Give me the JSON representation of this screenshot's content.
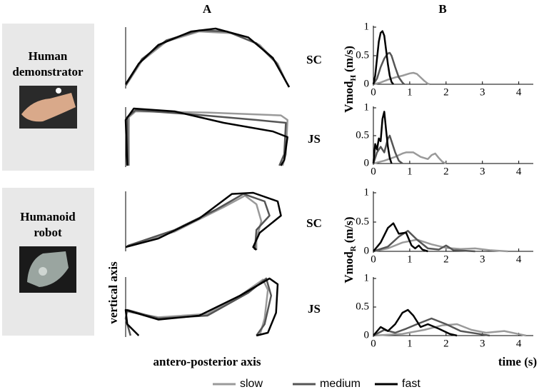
{
  "column_labels": [
    "A",
    "B"
  ],
  "rows": [
    {
      "label": [
        "Human",
        "demonstrator"
      ]
    },
    {
      "label": [
        "Humanoid",
        "robot"
      ]
    }
  ],
  "chart_data": [
    {
      "type": "line",
      "title": "SC",
      "xlim": [
        0,
        1
      ],
      "ylim": [
        0,
        1
      ],
      "series": [
        {
          "name": "slow",
          "color": "#9a9a9a",
          "x": [
            0,
            0.1,
            0.25,
            0.45,
            0.65,
            0.82,
            0.93,
            0.98,
            1
          ],
          "values": [
            0.02,
            0.45,
            0.78,
            0.95,
            0.92,
            0.72,
            0.4,
            0.1,
            0
          ]
        },
        {
          "name": "medium",
          "color": "#555555",
          "x": [
            0,
            0.1,
            0.25,
            0.45,
            0.62,
            0.8,
            0.92,
            0.98,
            1
          ],
          "values": [
            0.03,
            0.48,
            0.8,
            0.97,
            0.95,
            0.75,
            0.42,
            0.1,
            0
          ]
        },
        {
          "name": "fast",
          "color": "#000000",
          "x": [
            0,
            0.08,
            0.2,
            0.4,
            0.55,
            0.75,
            0.9,
            0.97,
            1
          ],
          "values": [
            0.05,
            0.4,
            0.72,
            0.95,
            1,
            0.85,
            0.5,
            0.15,
            0
          ]
        }
      ]
    },
    {
      "type": "line",
      "title": "JS",
      "xlim": [
        0,
        1
      ],
      "ylim": [
        0,
        1
      ],
      "series": [
        {
          "name": "slow",
          "color": "#9a9a9a",
          "x": [
            0.02,
            0.02,
            0.06,
            0.5,
            0.95,
            0.99,
            0.98,
            0.96
          ],
          "values": [
            0,
            0.85,
            0.95,
            0.93,
            0.88,
            0.8,
            0.2,
            0
          ]
        },
        {
          "name": "medium",
          "color": "#555555",
          "x": [
            0.015,
            0.01,
            0.06,
            0.4,
            0.8,
            0.98,
            0.97,
            0.94
          ],
          "values": [
            0,
            0.85,
            0.97,
            0.9,
            0.8,
            0.75,
            0.2,
            0
          ]
        },
        {
          "name": "fast",
          "color": "#000000",
          "x": [
            0.01,
            0,
            0.05,
            0.3,
            0.6,
            0.9,
            0.99,
            0.97,
            0.95
          ],
          "values": [
            0,
            0.8,
            1,
            0.95,
            0.75,
            0.6,
            0.5,
            0.1,
            0
          ]
        }
      ]
    },
    {
      "type": "line",
      "title": "SC",
      "xlim": [
        0,
        1
      ],
      "ylim": [
        0,
        1
      ],
      "series": [
        {
          "name": "slow",
          "color": "#9a9a9a",
          "x": [
            0.02,
            0.3,
            0.6,
            0.73,
            0.8,
            0.83,
            0.8,
            0.8
          ],
          "values": [
            0.08,
            0.32,
            0.75,
            0.95,
            0.8,
            0.5,
            0.2,
            0
          ]
        },
        {
          "name": "medium",
          "color": "#555555",
          "x": [
            0.01,
            0.3,
            0.55,
            0.72,
            0.85,
            0.88,
            0.8,
            0.79
          ],
          "values": [
            0.07,
            0.35,
            0.7,
            0.98,
            0.85,
            0.6,
            0.35,
            0
          ]
        },
        {
          "name": "fast",
          "color": "#000000",
          "x": [
            0,
            0.2,
            0.45,
            0.65,
            0.78,
            0.93,
            0.95,
            0.82,
            0.78,
            0.8
          ],
          "values": [
            0.05,
            0.2,
            0.55,
            0.98,
            1,
            0.85,
            0.6,
            0.3,
            0.05,
            0
          ]
        }
      ]
    },
    {
      "type": "line",
      "title": "JS",
      "xlabel": "antero-posterior axis",
      "ylabel": "vertical axis",
      "xlim": [
        0,
        1
      ],
      "ylim": [
        0,
        1
      ],
      "series": [
        {
          "name": "slow",
          "color": "#9a9a9a",
          "x": [
            0.01,
            0.2,
            0.5,
            0.7,
            0.84,
            0.87,
            0.85,
            0.82
          ],
          "values": [
            0.42,
            0.32,
            0.38,
            0.7,
            0.98,
            0.8,
            0.3,
            0
          ]
        },
        {
          "name": "medium",
          "color": "#555555",
          "x": [
            0.03,
            0,
            0.01,
            0.2,
            0.5,
            0.75,
            0.86,
            0.89,
            0.85,
            0.8
          ],
          "values": [
            0,
            0.3,
            0.45,
            0.3,
            0.35,
            0.75,
            1,
            0.7,
            0.2,
            0
          ]
        },
        {
          "name": "fast",
          "color": "#000000",
          "x": [
            0.08,
            0.01,
            0,
            0.2,
            0.45,
            0.7,
            0.88,
            0.93,
            0.92,
            0.87,
            0.8
          ],
          "values": [
            0,
            0.2,
            0.45,
            0.28,
            0.35,
            0.7,
            1,
            0.9,
            0.4,
            0.05,
            0
          ]
        }
      ]
    },
    {
      "type": "line",
      "xlim": [
        0,
        4.4
      ],
      "ylim": [
        0,
        1
      ],
      "xticks": [
        0,
        1,
        2,
        3,
        4
      ],
      "yticks": [
        0,
        0.5,
        1
      ],
      "series": [
        {
          "name": "slow",
          "color": "#9a9a9a",
          "x": [
            0,
            0.2,
            0.4,
            0.6,
            0.8,
            1.0,
            1.1,
            1.2,
            1.3,
            1.4,
            1.5,
            1.55
          ],
          "values": [
            0,
            0.03,
            0.08,
            0.12,
            0.15,
            0.19,
            0.2,
            0.18,
            0.12,
            0.06,
            0.01,
            0
          ]
        },
        {
          "name": "medium",
          "color": "#555555",
          "x": [
            0,
            0.1,
            0.2,
            0.3,
            0.4,
            0.45,
            0.5,
            0.6,
            0.7,
            0.8,
            0.85
          ],
          "values": [
            0,
            0.1,
            0.3,
            0.45,
            0.54,
            0.55,
            0.5,
            0.3,
            0.12,
            0.03,
            0
          ]
        },
        {
          "name": "fast",
          "color": "#000000",
          "x": [
            0,
            0.05,
            0.1,
            0.15,
            0.2,
            0.25,
            0.3,
            0.35,
            0.4,
            0.45,
            0.5,
            0.55
          ],
          "values": [
            0,
            0.15,
            0.45,
            0.75,
            0.9,
            0.93,
            0.85,
            0.6,
            0.35,
            0.15,
            0.04,
            0
          ]
        }
      ]
    },
    {
      "type": "line",
      "ylabel": "Vmod",
      "ylabel_sub": "H",
      "ylabel_unit": "(m/s)",
      "xlim": [
        0,
        4.4
      ],
      "ylim": [
        0,
        1
      ],
      "xticks": [
        0,
        1,
        2,
        3,
        4
      ],
      "yticks": [
        0,
        0.5,
        1
      ],
      "series": [
        {
          "name": "slow",
          "color": "#9a9a9a",
          "x": [
            0,
            0.3,
            0.6,
            0.8,
            0.9,
            1.1,
            1.3,
            1.5,
            1.6,
            1.7,
            1.8,
            1.9,
            2.0
          ],
          "values": [
            0,
            0.05,
            0.12,
            0.18,
            0.2,
            0.2,
            0.12,
            0.08,
            0.15,
            0.18,
            0.1,
            0.03,
            0
          ]
        },
        {
          "name": "medium",
          "color": "#555555",
          "x": [
            0,
            0.1,
            0.2,
            0.3,
            0.4,
            0.45,
            0.5,
            0.6,
            0.7,
            0.8
          ],
          "values": [
            0,
            0.2,
            0.3,
            0.2,
            0.45,
            0.5,
            0.4,
            0.2,
            0.05,
            0
          ]
        },
        {
          "name": "fast",
          "color": "#000000",
          "x": [
            0,
            0.05,
            0.1,
            0.15,
            0.2,
            0.25,
            0.3,
            0.35,
            0.4,
            0.45,
            0.5
          ],
          "values": [
            0,
            0.35,
            0.25,
            0.45,
            0.4,
            0.8,
            0.93,
            0.6,
            0.3,
            0.1,
            0
          ]
        }
      ]
    },
    {
      "type": "line",
      "xlim": [
        0,
        4.4
      ],
      "ylim": [
        0,
        1
      ],
      "xticks": [
        0,
        1,
        2,
        3,
        4
      ],
      "yticks": [
        0,
        0.5,
        1
      ],
      "series": [
        {
          "name": "slow",
          "color": "#9a9a9a",
          "x": [
            0,
            0.4,
            0.8,
            1.2,
            1.6,
            2.0,
            2.4,
            2.8,
            3.2,
            3.7
          ],
          "values": [
            0,
            0.05,
            0.15,
            0.2,
            0.12,
            0.06,
            0.04,
            0.05,
            0.02,
            0
          ]
        },
        {
          "name": "medium",
          "color": "#555555",
          "x": [
            0,
            0.4,
            0.7,
            0.95,
            1.2,
            1.5,
            1.8,
            2.0,
            2.2,
            2.5,
            2.8
          ],
          "values": [
            0,
            0.08,
            0.25,
            0.35,
            0.2,
            0.05,
            0.03,
            0.1,
            0.02,
            0.01,
            0
          ]
        },
        {
          "name": "fast",
          "color": "#000000",
          "x": [
            0,
            0.2,
            0.4,
            0.55,
            0.7,
            0.9,
            1.05,
            1.15,
            1.25,
            1.35,
            1.5
          ],
          "values": [
            0,
            0.15,
            0.4,
            0.48,
            0.3,
            0.32,
            0.1,
            0.05,
            0.1,
            0.03,
            0
          ]
        }
      ]
    },
    {
      "type": "line",
      "ylabel": "Vmod",
      "ylabel_sub": "R",
      "ylabel_unit": "(m/s)",
      "xlabel": "time (s)",
      "xlim": [
        0,
        4.4
      ],
      "ylim": [
        0,
        1
      ],
      "xticks": [
        0,
        1,
        2,
        3,
        4
      ],
      "yticks": [
        0,
        0.5,
        1
      ],
      "series": [
        {
          "name": "slow",
          "color": "#9a9a9a",
          "x": [
            0,
            0.8,
            1.4,
            1.9,
            2.3,
            2.7,
            3.1,
            3.6,
            3.9,
            4.2
          ],
          "values": [
            0,
            0.03,
            0.1,
            0.18,
            0.2,
            0.1,
            0.05,
            0.08,
            0.04,
            0
          ]
        },
        {
          "name": "medium",
          "color": "#555555",
          "x": [
            0,
            0.3,
            0.6,
            0.9,
            1.2,
            1.6,
            2.0,
            2.4,
            2.8,
            3.2
          ],
          "values": [
            0,
            0.1,
            0.05,
            0.12,
            0.2,
            0.3,
            0.2,
            0.08,
            0.04,
            0
          ]
        },
        {
          "name": "fast",
          "color": "#000000",
          "x": [
            0,
            0.2,
            0.4,
            0.6,
            0.8,
            0.95,
            1.1,
            1.3,
            1.5,
            1.8,
            2.1,
            2.3
          ],
          "values": [
            0,
            0.15,
            0.08,
            0.2,
            0.4,
            0.45,
            0.35,
            0.15,
            0.2,
            0.12,
            0.03,
            0
          ]
        }
      ]
    }
  ]
}
